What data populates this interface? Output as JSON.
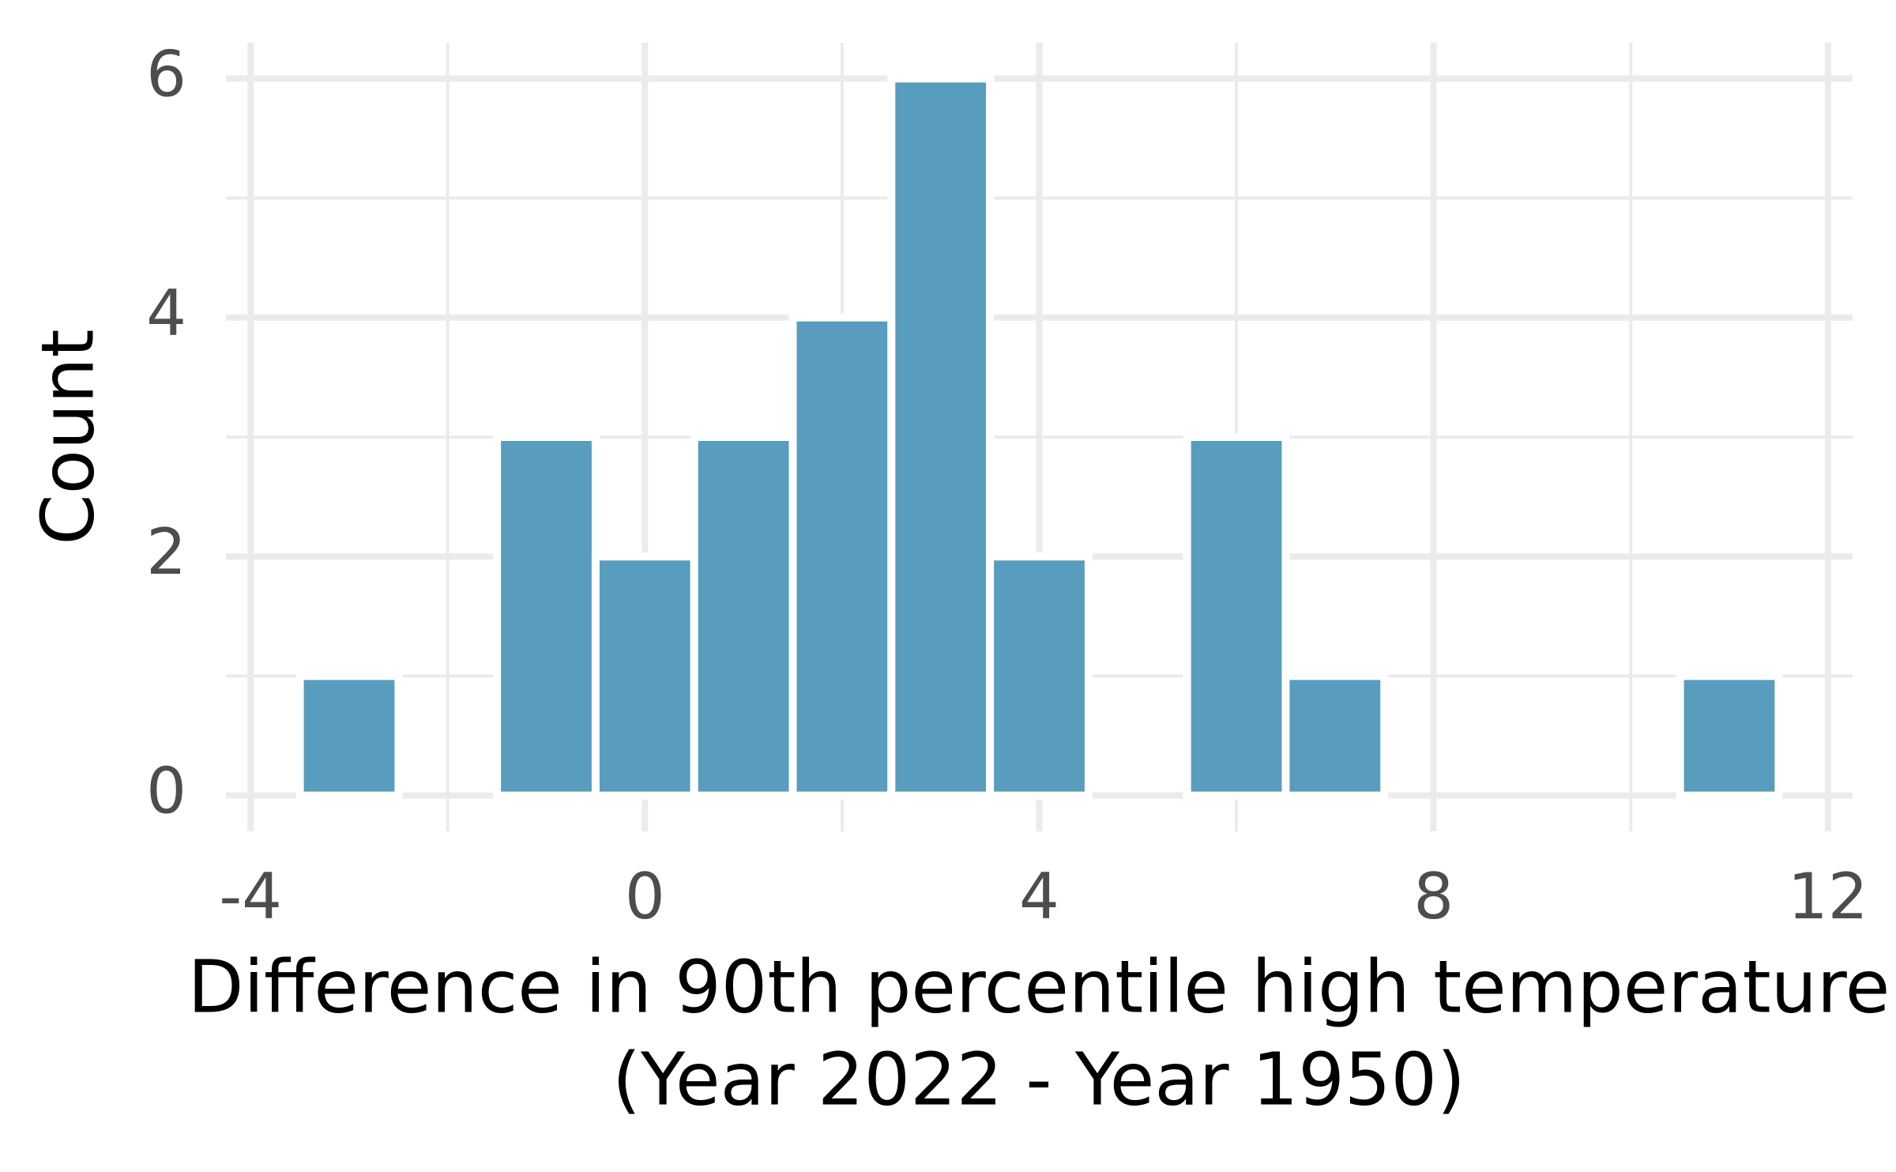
{
  "chart_data": {
    "type": "histogram",
    "xlabel": [
      "Difference in 90th percentile high temperature",
      "(Year 2022 - Year 1950)"
    ],
    "ylabel": "Count",
    "bins": [
      -3.5,
      -2.5,
      -1.5,
      -0.5,
      0.5,
      1.5,
      2.5,
      3.5,
      4.5,
      5.5,
      6.5,
      7.5,
      8.5,
      9.5,
      10.5,
      11.5
    ],
    "values": [
      1,
      0,
      3,
      2,
      3,
      4,
      6,
      2,
      0,
      3,
      1,
      0,
      0,
      0,
      1
    ],
    "color": "#589cbe",
    "xlim": [
      -4.25,
      12.25
    ],
    "xticks": [
      -4,
      0,
      4,
      8,
      12
    ],
    "ylim": [
      -0.3,
      6.3
    ],
    "yticks": [
      0,
      2,
      4,
      6
    ],
    "grid": true
  }
}
